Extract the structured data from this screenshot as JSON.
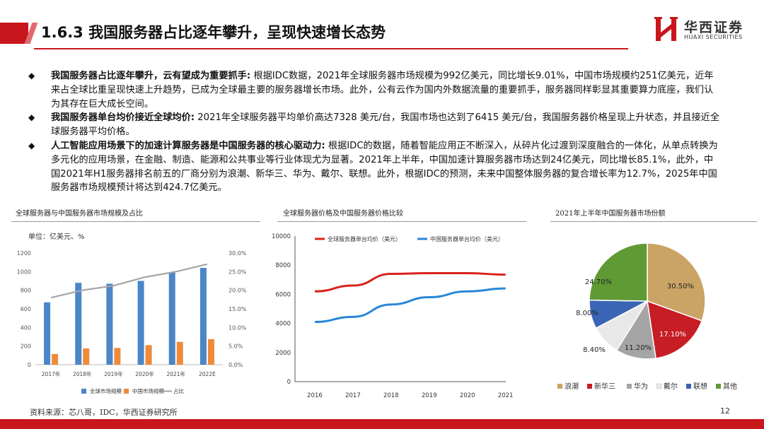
{
  "header": {
    "title": "1.6.3 我国服务器占比逐年攀升，呈现快速增长态势",
    "logo_cn": "华西证券",
    "logo_en": "HUAXI SECURITIES",
    "accent": "#c8161d"
  },
  "bullets": [
    {
      "bold": "我国服务器占比逐年攀升，云有望成为重要抓手:",
      "text": " 根据IDC数据，2021年全球服务器市场规模为992亿美元，同比增长9.01%，中国市场规模约251亿美元，近年来占全球比重呈现快速上升趋势，已成为全球最主要的服务器增长市场。此外，公有云作为国内外数据流量的重要抓手，服务器同样彰显其重要算力底座，我们认为其存在巨大成长空间。"
    },
    {
      "bold": "我国服务器单台均价接近全球均价:",
      "text": " 2021年全球服务器平均单价高达7328 美元/台，我国市场也达到了6415 美元/台，我国服务器价格呈现上升状态，并且接近全球服务器平均价格。"
    },
    {
      "bold": "人工智能应用场景下的加速计算服务器是中国服务器的核心驱动力:",
      "text": " 根据IDC的数据，随着智能应用正不断深入，从碎片化过渡到深度融合的一体化，从单点转换为多元化的应用场景，在金融、制造、能源和公共事业等行业体现尤为显著。2021年上半年，中国加速计算服务器市场达到24亿美元，同比增长85.1%，此外，中国2021年H1服务器排名前五的厂商分别为浪潮、新华三、华为、戴尔、联想。此外，根据IDC的预测，未来中国整体服务器的复合增长率为12.7%，2025年中国服务器市场规模预计将达到424.7亿美元。"
    }
  ],
  "panels": {
    "p1_title": "全球服务器与中国服务器市场规模及占比",
    "p2_title": "全球服务器价格及中国服务器价格比较",
    "p3_title": "2021年上半年中国服务器市场份额"
  },
  "chart_data": [
    {
      "type": "bar",
      "unit_label": "单位：亿美元、%",
      "categories": [
        "2017年",
        "2018年",
        "2019年",
        "2020年",
        "2021年",
        "2022E"
      ],
      "series": [
        {
          "name": "全球市场规模",
          "kind": "bar",
          "axis": "left",
          "color": "#4a86c8",
          "values": [
            670,
            880,
            870,
            900,
            990,
            1040
          ]
        },
        {
          "name": "中国市场规模",
          "kind": "bar",
          "axis": "left",
          "color": "#ef8a3a",
          "values": [
            115,
            175,
            180,
            210,
            245,
            275
          ]
        },
        {
          "name": "占比",
          "kind": "line",
          "axis": "right",
          "color": "#a5a5a5",
          "values": [
            18.0,
            20.0,
            21.2,
            23.5,
            25.0,
            27.0
          ]
        }
      ],
      "ylim": [
        0,
        1200
      ],
      "yticks": [
        "0",
        "200",
        "400",
        "600",
        "800",
        "1000",
        "1200"
      ],
      "y2lim": [
        0,
        30
      ],
      "y2ticks": [
        "0.0%",
        "5.0%",
        "10.0%",
        "15.0%",
        "20.0%",
        "25.0%",
        "30.0%"
      ],
      "legend": "bottom"
    },
    {
      "type": "line",
      "x": [
        "2016",
        "2017",
        "2018",
        "2019",
        "2020",
        "2021"
      ],
      "series": [
        {
          "name": "全球服务器单台均价（美元）",
          "color": "#d9221c",
          "values": [
            6200,
            6600,
            7400,
            7450,
            7450,
            7350
          ]
        },
        {
          "name": "中国服务器单台均价（美元）",
          "color": "#2a86d9",
          "values": [
            4100,
            4450,
            5300,
            5800,
            6200,
            6400
          ]
        }
      ],
      "ylim": [
        0,
        10000
      ],
      "yticks": [
        "0",
        "2000",
        "4000",
        "6000",
        "8000",
        "10000"
      ],
      "legend": "top-left"
    },
    {
      "type": "pie",
      "slices": [
        {
          "name": "浪潮",
          "value": 30.5,
          "label": "30.50%",
          "color": "#c9a465"
        },
        {
          "name": "新华三",
          "value": 17.1,
          "label": "17.10%",
          "color": "#c71d24"
        },
        {
          "name": "华为",
          "value": 11.2,
          "label": "11.20%",
          "color": "#a5a5a5"
        },
        {
          "name": "戴尔",
          "value": 8.4,
          "label": "8.40%",
          "color": "#e8e8e8"
        },
        {
          "name": "联想",
          "value": 8.0,
          "label": "8.00%",
          "color": "#3a65b5"
        },
        {
          "name": "其他",
          "value": 24.7,
          "label": "24.70%",
          "color": "#5f9a35"
        }
      ],
      "legend": "bottom"
    }
  ],
  "footer": {
    "source": "资料来源：芯八哥，IDC，华西证券研究所",
    "page": "12"
  }
}
